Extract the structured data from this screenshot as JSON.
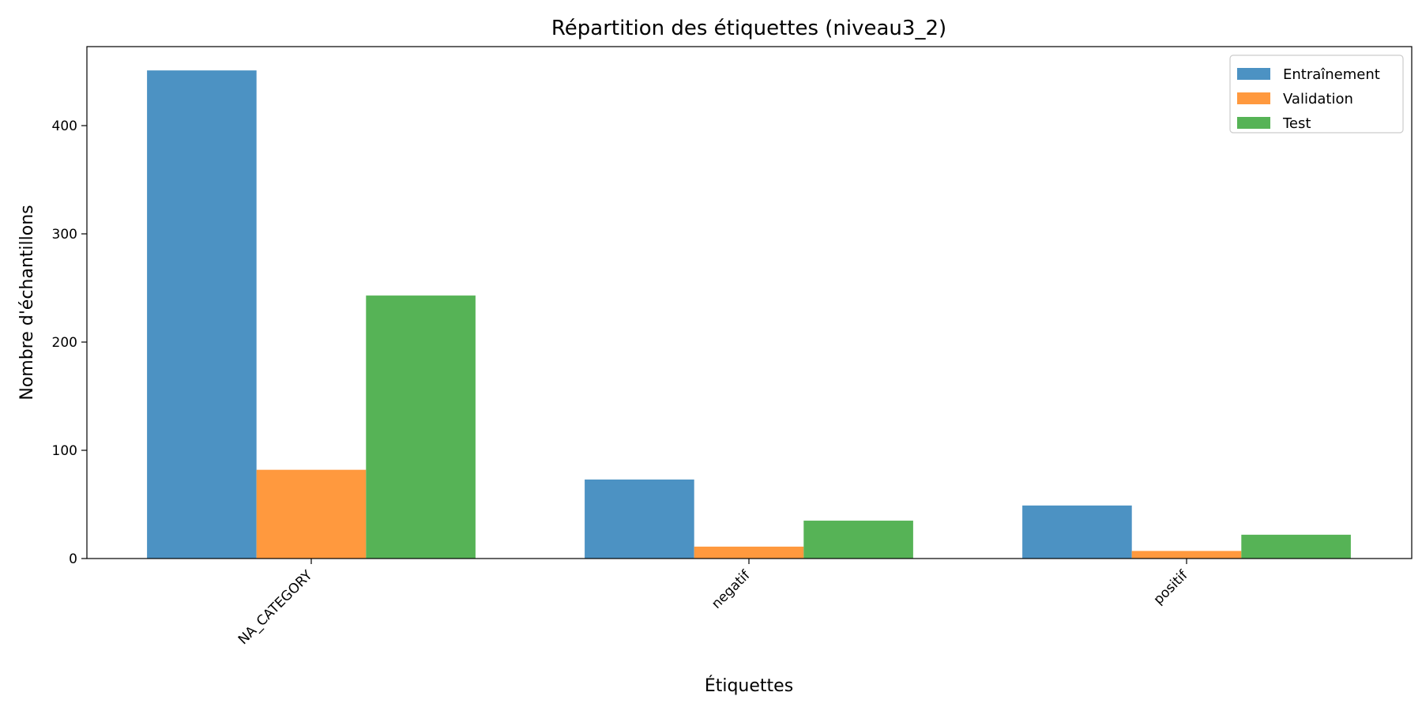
{
  "chart_data": {
    "type": "bar",
    "title": "Répartition des étiquettes (niveau3_2)",
    "xlabel": "Étiquettes",
    "ylabel": "Nombre d'échantillons",
    "categories": [
      "NA_CATEGORY",
      "negatif",
      "positif"
    ],
    "series": [
      {
        "name": "Entraînement",
        "color": "#4c92c3",
        "values": [
          451,
          73,
          49
        ]
      },
      {
        "name": "Validation",
        "color": "#ff993e",
        "values": [
          82,
          11,
          7
        ]
      },
      {
        "name": "Test",
        "color": "#56b356",
        "values": [
          243,
          35,
          22
        ]
      }
    ],
    "ylim": [
      0,
      473
    ],
    "yticks": [
      0,
      100,
      200,
      300,
      400
    ],
    "grid": false,
    "legend_position": "top-right"
  }
}
